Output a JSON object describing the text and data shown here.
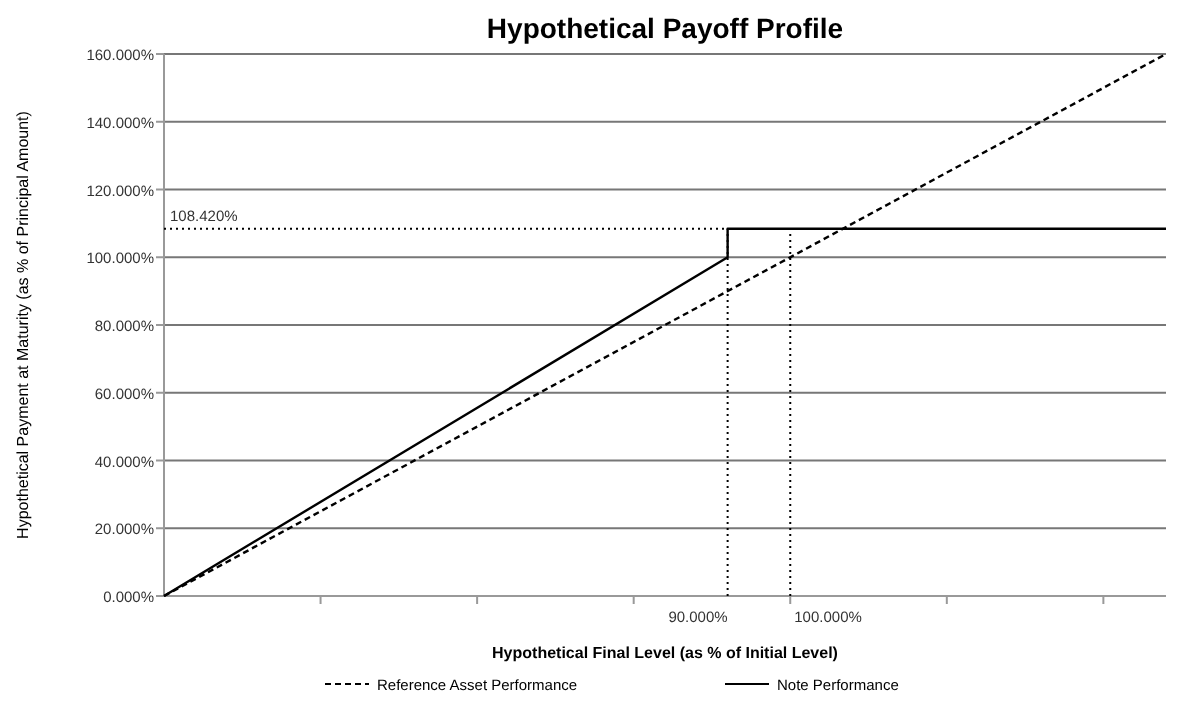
{
  "chart_data": {
    "type": "line",
    "title": "Hypothetical Payoff Profile",
    "xlabel": "Hypothetical Final Level (as % of Initial Level)",
    "ylabel": "Hypothetical Payment at Maturity (as % of Principal Amount)",
    "series": [
      {
        "name": "Reference Asset Performance",
        "color": "#000000",
        "line_style": "dashed",
        "x": [
          0,
          160
        ],
        "values": [
          0,
          160
        ]
      },
      {
        "name": "Note Performance",
        "color": "#000000",
        "line_style": "solid",
        "x": [
          0,
          90,
          90,
          160
        ],
        "values": [
          0,
          100,
          108.42,
          108.42
        ]
      }
    ],
    "xlim": [
      0,
      160
    ],
    "xticks": [
      {
        "value": 25,
        "label": null
      },
      {
        "value": 50,
        "label": null
      },
      {
        "value": 75,
        "label": null
      },
      {
        "value": 100,
        "label": null
      },
      {
        "value": 125,
        "label": null
      },
      {
        "value": 150,
        "label": null
      }
    ],
    "ylim": [
      0,
      160
    ],
    "yticks": [
      {
        "value": 0,
        "label": "0.000%"
      },
      {
        "value": 20,
        "label": "20.000%"
      },
      {
        "value": 40,
        "label": "40.000%"
      },
      {
        "value": 60,
        "label": "60.000%"
      },
      {
        "value": 80,
        "label": "80.000%"
      },
      {
        "value": 100,
        "label": "100.000%"
      },
      {
        "value": 120,
        "label": "120.000%"
      },
      {
        "value": 140,
        "label": "140.000%"
      },
      {
        "value": 160,
        "label": "160.000%"
      }
    ],
    "ref_lines": [
      {
        "axis": "y",
        "value": 108.42,
        "label": "108.420%",
        "line_style": "dotted",
        "color": "#000000"
      },
      {
        "axis": "x",
        "value": 90,
        "label": "90.000%",
        "line_style": "dotted",
        "color": "#000000"
      },
      {
        "axis": "x",
        "value": 100,
        "label": "100.000%",
        "line_style": "dotted",
        "color": "#000000"
      }
    ],
    "grid": "y",
    "legend": "bottom"
  }
}
